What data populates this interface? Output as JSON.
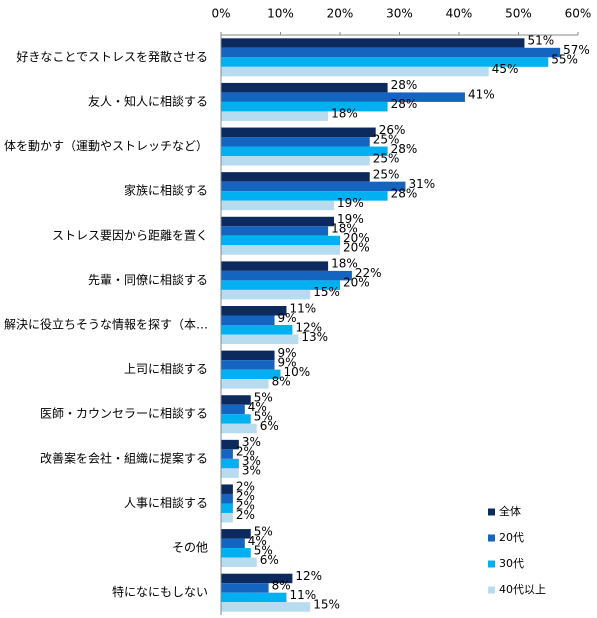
{
  "chart_data": {
    "type": "hbar",
    "categories": [
      "好きなことでストレスを発散させる",
      "友人・知人に相談する",
      "体を動かす（運動やストレッチなど）",
      "家族に相談する",
      "ストレス要因から距離を置く",
      "先輩・同僚に相談する",
      "解決に役立ちそうな情報を探す（本…",
      "上司に相談する",
      "医師・カウンセラーに相談する",
      "改善案を会社・組織に提案する",
      "人事に相談する",
      "その他",
      "特になにもしない"
    ],
    "series": [
      {
        "name": "全体",
        "color": "#0d2a5e",
        "values": [
          51,
          28,
          26,
          25,
          19,
          18,
          11,
          9,
          5,
          3,
          2,
          5,
          12
        ],
        "value_labels": [
          "51%",
          "28%",
          "26%",
          "25%",
          "19%",
          "18%",
          "11%",
          "9%",
          "5%",
          "3%",
          "2%",
          "5%",
          "12%"
        ]
      },
      {
        "name": "20代",
        "color": "#1565c0",
        "values": [
          57,
          41,
          25,
          31,
          18,
          22,
          9,
          9,
          4,
          2,
          2,
          4,
          8
        ],
        "value_labels": [
          "57%",
          "41%",
          "25%",
          "31%",
          "18%",
          "22%",
          "9%",
          "9%",
          "4%",
          "2%",
          "2%",
          "4%",
          "8%"
        ]
      },
      {
        "name": "30代",
        "color": "#00b0f0",
        "values": [
          55,
          28,
          28,
          28,
          20,
          20,
          12,
          10,
          5,
          3,
          2,
          5,
          11
        ],
        "value_labels": [
          "55%",
          "28%",
          "28%",
          "28%",
          "20%",
          "20%",
          "12%",
          "10%",
          "5%",
          "3%",
          "2%",
          "5%",
          "11%"
        ]
      },
      {
        "name": "40代以上",
        "color": "#b7dcef",
        "values": [
          45,
          18,
          25,
          19,
          20,
          15,
          13,
          8,
          6,
          3,
          2,
          6,
          15
        ],
        "value_labels": [
          "45%",
          "18%",
          "25%",
          "19%",
          "20%",
          "15%",
          "13%",
          "8%",
          "6%",
          "3%",
          "2%",
          "6%",
          "15%"
        ]
      }
    ],
    "xlim": [
      0,
      60
    ],
    "xticks": [
      {
        "value": 0,
        "label": "0%"
      },
      {
        "value": 10,
        "label": "10%"
      },
      {
        "value": 20,
        "label": "20%"
      },
      {
        "value": 30,
        "label": "30%"
      },
      {
        "value": 40,
        "label": "40%"
      },
      {
        "value": 50,
        "label": "50%"
      },
      {
        "value": 60,
        "label": "60%"
      }
    ],
    "legend": "lower right"
  }
}
